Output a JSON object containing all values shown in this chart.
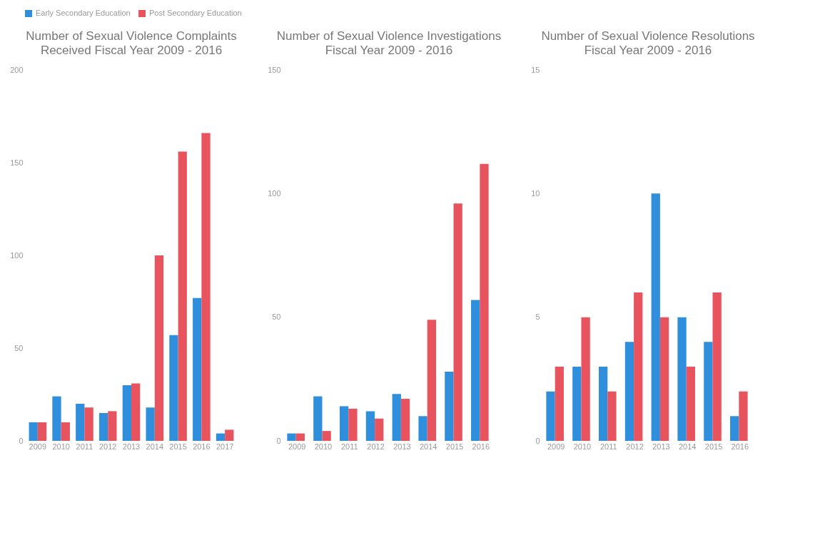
{
  "chart_data": [
    {
      "type": "bar",
      "title": "Number of Sexual Violence Complaints",
      "subtitle": "Received Fiscal Year 2009 - 2016",
      "categories": [
        "2009",
        "2010",
        "2011",
        "2012",
        "2013",
        "2014",
        "2015",
        "2016",
        "2017"
      ],
      "series": [
        {
          "name": "Early Secondary Education",
          "color": "#2f8fdc",
          "values": [
            10,
            24,
            20,
            15,
            30,
            18,
            57,
            77,
            4
          ]
        },
        {
          "name": "Post Secondary Education",
          "color": "#e8545e",
          "values": [
            10,
            10,
            18,
            16,
            31,
            100,
            156,
            166,
            6
          ]
        }
      ],
      "ylim": [
        0,
        200
      ],
      "yticks": [
        0,
        50,
        100,
        150,
        200
      ],
      "legend": "top",
      "grid": false
    },
    {
      "type": "bar",
      "title": "Number of Sexual Violence Investigations",
      "subtitle": "Fiscal Year 2009 - 2016",
      "categories": [
        "2009",
        "2010",
        "2011",
        "2012",
        "2013",
        "2014",
        "2015",
        "2016"
      ],
      "series": [
        {
          "name": "Early Secondary Education",
          "color": "#2f8fdc",
          "values": [
            3,
            18,
            14,
            12,
            19,
            10,
            28,
            57
          ]
        },
        {
          "name": "Post Secondary Education",
          "color": "#e8545e",
          "values": [
            3,
            4,
            13,
            9,
            17,
            49,
            96,
            112
          ]
        }
      ],
      "ylim": [
        0,
        150
      ],
      "yticks": [
        0,
        50,
        100,
        150
      ],
      "legend": "top",
      "grid": false
    },
    {
      "type": "bar",
      "title": "Number of Sexual Violence Resolutions",
      "subtitle": "Fiscal Year 2009 - 2016",
      "categories": [
        "2009",
        "2010",
        "2011",
        "2012",
        "2013",
        "2014",
        "2015",
        "2016"
      ],
      "series": [
        {
          "name": "Early Secondary Education",
          "color": "#2f8fdc",
          "values": [
            2,
            3,
            3,
            4,
            10,
            5,
            4,
            1
          ]
        },
        {
          "name": "Post Secondary Education",
          "color": "#e8545e",
          "values": [
            3,
            5,
            2,
            6,
            5,
            3,
            6,
            2
          ]
        }
      ],
      "ylim": [
        0,
        15
      ],
      "yticks": [
        0,
        5,
        10,
        15
      ],
      "legend": "top",
      "grid": false
    }
  ]
}
